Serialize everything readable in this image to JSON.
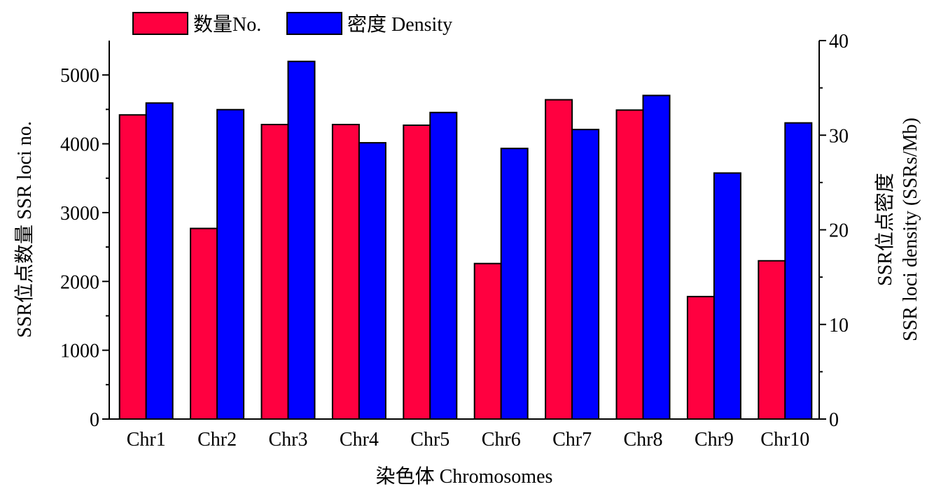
{
  "chart_data": {
    "type": "bar",
    "categories": [
      "Chr1",
      "Chr2",
      "Chr3",
      "Chr4",
      "Chr5",
      "Chr6",
      "Chr7",
      "Chr8",
      "Chr9",
      "Chr10"
    ],
    "series": [
      {
        "name": "数量No.",
        "axis": "left",
        "color": "#ff0040",
        "values": [
          4420,
          2770,
          4280,
          4280,
          4270,
          2260,
          4640,
          4490,
          1780,
          2300
        ]
      },
      {
        "name": "密度 Density",
        "axis": "right",
        "color": "#0000ff",
        "values": [
          33.4,
          32.7,
          37.8,
          29.2,
          32.4,
          28.6,
          30.6,
          34.2,
          26.0,
          31.3
        ]
      }
    ],
    "xlabel": "染色体 Chromosomes",
    "ylabel_left": "SSR位点数量 SSR loci no.",
    "ylabel_right_line1": "SSR位点密度",
    "ylabel_right_line2": "SSR loci density (SSRs/Mb)",
    "ylim_left": [
      0,
      5500
    ],
    "ylim_right": [
      0,
      40
    ],
    "yticks_left": [
      0,
      1000,
      2000,
      3000,
      4000,
      5000
    ],
    "yticks_right": [
      0,
      10,
      20,
      30,
      40
    ],
    "legend_position": "top-left",
    "grid": false
  }
}
